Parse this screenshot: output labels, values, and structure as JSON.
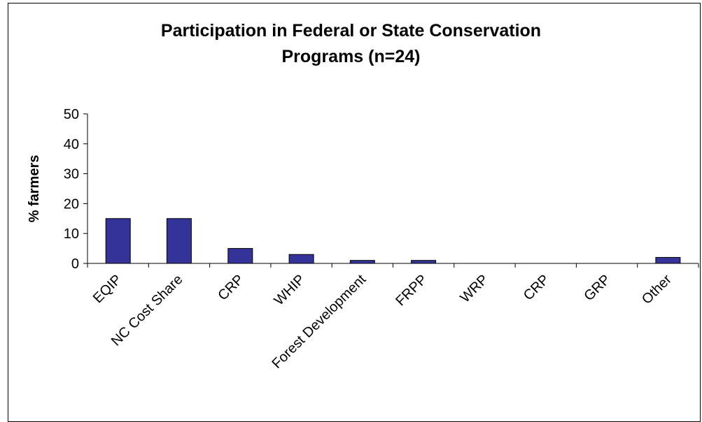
{
  "chart_data": {
    "type": "bar",
    "title_lines": [
      "Participation in Federal or State Conservation",
      "Programs (n=24)"
    ],
    "ylabel": "% farmers",
    "xlabel": "",
    "categories": [
      "EQIP",
      "NC Cost Share",
      "CRP",
      "WHIP",
      "Forest Development",
      "FRPP",
      "WRP",
      "CRP",
      "GRP",
      "Other"
    ],
    "values": [
      15,
      15,
      5,
      3,
      1,
      1,
      0,
      0,
      0,
      2
    ],
    "ylim": [
      0,
      50
    ],
    "yticks": [
      "0",
      "10",
      "20",
      "30",
      "40",
      "50"
    ],
    "grid": false,
    "legend": "none",
    "bar_color": "#333399"
  }
}
